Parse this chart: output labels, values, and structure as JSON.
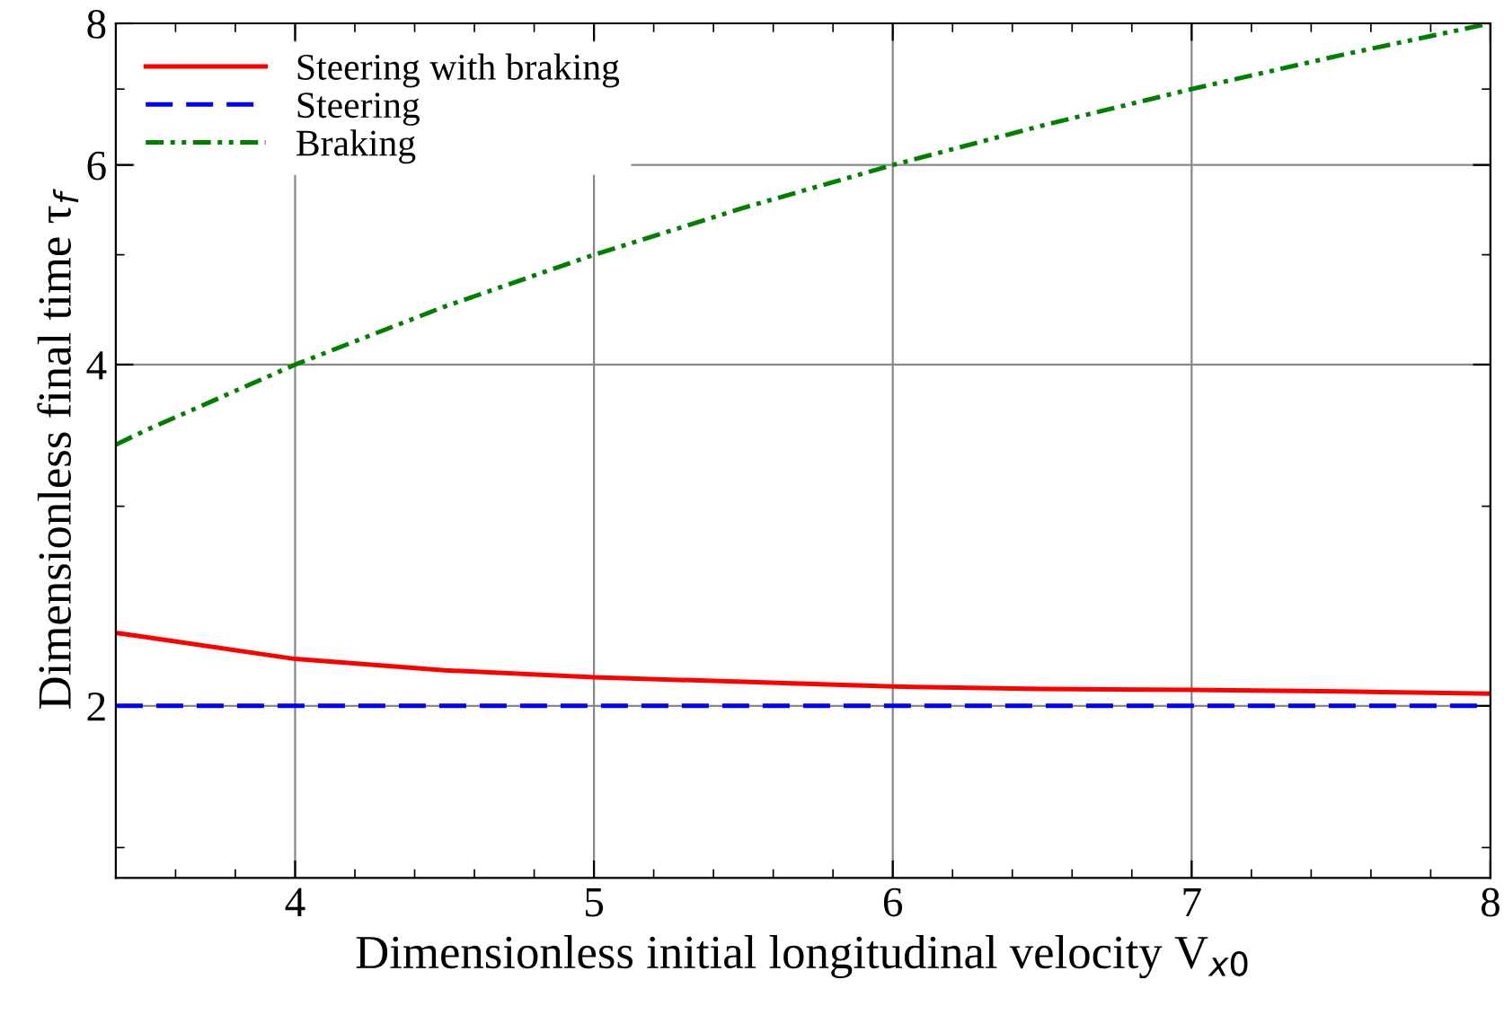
{
  "chart_data": {
    "type": "line",
    "xlabel": "Dimensionless initial longitudinal velocity V$_{x0}$",
    "ylabel": "Dimensionless final time τ$_{f}$",
    "log": "y",
    "xlim": [
      3.4,
      8
    ],
    "ylim": [
      1.41,
      8
    ],
    "xticks": [
      4,
      5,
      6,
      7,
      8,
      {
        "value": 3.6,
        "label": null
      },
      {
        "value": 3.8,
        "label": null
      },
      {
        "value": 4.2,
        "label": null
      },
      {
        "value": 4.4,
        "label": null
      },
      {
        "value": 4.6,
        "label": null
      },
      {
        "value": 4.8,
        "label": null
      },
      {
        "value": 5.2,
        "label": null
      },
      {
        "value": 5.4,
        "label": null
      },
      {
        "value": 5.6,
        "label": null
      },
      {
        "value": 5.8,
        "label": null
      },
      {
        "value": 6.2,
        "label": null
      },
      {
        "value": 6.4,
        "label": null
      },
      {
        "value": 6.6,
        "label": null
      },
      {
        "value": 6.8,
        "label": null
      },
      {
        "value": 7.2,
        "label": null
      },
      {
        "value": 7.4,
        "label": null
      },
      {
        "value": 7.6,
        "label": null
      },
      {
        "value": 7.8,
        "label": null
      }
    ],
    "yticks": [
      2,
      4,
      6,
      8,
      {
        "value": 1.5,
        "label": null
      },
      {
        "value": 3,
        "label": null
      },
      {
        "value": 5,
        "label": null
      },
      {
        "value": 7,
        "label": null
      }
    ],
    "grid": true,
    "legend": "top left",
    "x": [
      3.4,
      3.5,
      4,
      4.5,
      5,
      5.5,
      6,
      6.5,
      7,
      7.5,
      8
    ],
    "series": [
      {
        "name": "Steering with braking",
        "color": "#ff0000",
        "line_style": "solid",
        "values": [
          2.32,
          2.3,
          2.2,
          2.15,
          2.12,
          2.1,
          2.08,
          2.07,
          2.066,
          2.06,
          2.05
        ]
      },
      {
        "name": "Steering",
        "color": "#0000ff",
        "line_style": "dashed",
        "values": [
          2,
          2,
          2,
          2,
          2,
          2,
          2,
          2,
          2,
          2,
          2
        ]
      },
      {
        "name": "Braking",
        "color": "#008000",
        "line_style": "dotted",
        "values": [
          3.4,
          3.5,
          4,
          4.5,
          5,
          5.5,
          6,
          6.5,
          7,
          7.5,
          8
        ]
      }
    ]
  }
}
